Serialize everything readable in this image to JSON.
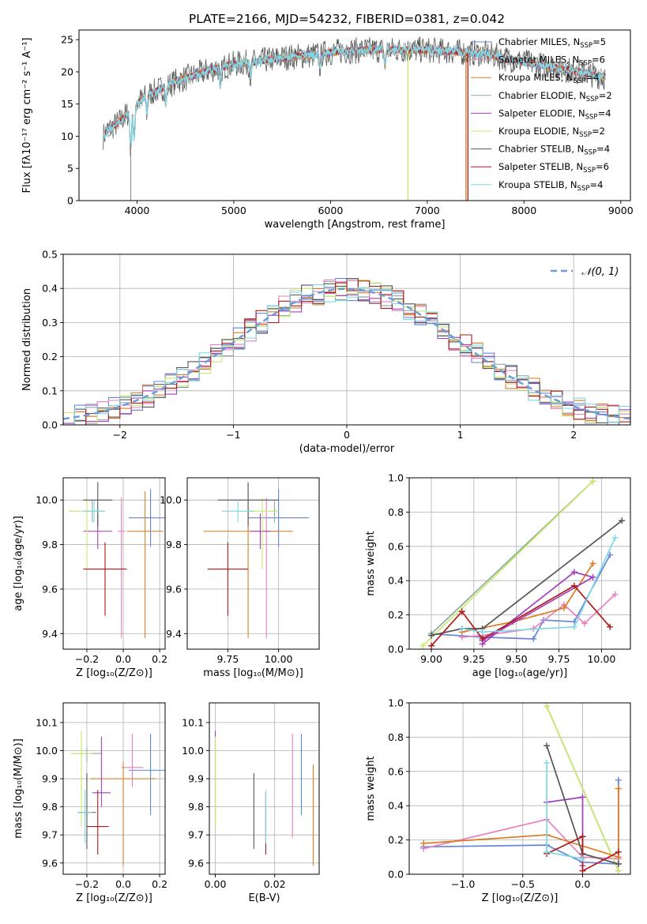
{
  "title": "PLATE=2166, MJD=54232, FIBERID=0381, z=0.042",
  "colors": {
    "chabrier_miles": "#6585d6",
    "salpeter_miles": "#e87fbf",
    "kroupa_miles": "#dd7b22",
    "chabrier_elodie": "#8fa8a4",
    "salpeter_elodie": "#a33fbd",
    "kroupa_elodie": "#c9e86b",
    "chabrier_stelib": "#555555",
    "salpeter_stelib": "#b01a1a",
    "kroupa_stelib": "#7fd8e6",
    "normal_curve": "#6b9ad8"
  },
  "chart_data": [
    {
      "id": "spectrum",
      "type": "line",
      "xlabel": "wavelength [Angstrom, rest frame]",
      "ylabel": "Flux [fλ10⁻¹⁷ erg cm⁻² s⁻¹ A⁻¹]",
      "xlim": [
        3400,
        9100
      ],
      "ylim": [
        0,
        26.5
      ],
      "xticks": [
        4000,
        5000,
        6000,
        7000,
        8000,
        9000
      ],
      "yticks": [
        0,
        5,
        10,
        15,
        20,
        25
      ],
      "grid": false,
      "legend": "top-right",
      "legend_entries": [
        {
          "label": "Chabrier MILES, N",
          "sub": "SSP",
          "suffix": "=5",
          "color_key": "chabrier_miles"
        },
        {
          "label": "Salpeter MILES, N",
          "sub": "SSP",
          "suffix": "=6",
          "color_key": "salpeter_miles"
        },
        {
          "label": "Kroupa MILES, N",
          "sub": "SSP",
          "suffix": "=4",
          "color_key": "kroupa_miles"
        },
        {
          "label": "Chabrier ELODIE, N",
          "sub": "SSP",
          "suffix": "=2",
          "color_key": "chabrier_elodie"
        },
        {
          "label": "Salpeter ELODIE, N",
          "sub": "SSP",
          "suffix": "=4",
          "color_key": "salpeter_elodie"
        },
        {
          "label": "Kroupa ELODIE, N",
          "sub": "SSP",
          "suffix": "=2",
          "color_key": "kroupa_elodie"
        },
        {
          "label": "Chabrier STELIB, N",
          "sub": "SSP",
          "suffix": "=4",
          "color_key": "chabrier_stelib"
        },
        {
          "label": "Salpeter STELIB, N",
          "sub": "SSP",
          "suffix": "=6",
          "color_key": "salpeter_stelib"
        },
        {
          "label": "Kroupa STELIB, N",
          "sub": "SSP",
          "suffix": "=4",
          "color_key": "kroupa_stelib"
        }
      ],
      "continuum": {
        "x": [
          3650,
          3700,
          3800,
          3900,
          4000,
          4100,
          4200,
          4300,
          4400,
          4600,
          4800,
          5000,
          5200,
          5500,
          5800,
          6100,
          6400,
          6700,
          7000,
          7300,
          7600,
          7900,
          8200,
          8500,
          8840
        ],
        "y": [
          10,
          11,
          12,
          13.5,
          15,
          16.5,
          17,
          17.8,
          18.5,
          19.5,
          20.5,
          21.2,
          21.5,
          22.2,
          22.6,
          23.2,
          23.4,
          23.4,
          23.4,
          23.1,
          22.8,
          21.8,
          21,
          20.2,
          19.2
        ]
      },
      "features": [
        {
          "name": "Kroupa ELODIE edge",
          "color_key": "kroupa_elodie",
          "x_start": 3650,
          "x_end": 6800
        },
        {
          "name": "Salpeter STELIB edge",
          "color_key": "salpeter_stelib",
          "x_start": 3650,
          "x_end": 7420
        },
        {
          "name": "Kroupa MILES edge",
          "color_key": "kroupa_miles",
          "x_start": 3650,
          "x_end": 7400
        }
      ]
    },
    {
      "id": "residuals",
      "type": "line",
      "xlabel": "(data-model)/error",
      "ylabel": "Normed distribution",
      "xlim": [
        -2.5,
        2.5
      ],
      "ylim": [
        0,
        0.5
      ],
      "xticks": [
        -2,
        -1,
        0,
        1,
        2
      ],
      "xticklabels": [
        "−2",
        "−1",
        "0",
        "1",
        "2"
      ],
      "yticks": [
        0,
        0.1,
        0.2,
        0.3,
        0.4,
        0.5
      ],
      "grid": true,
      "legend": "top-right",
      "legend_entries": [
        {
          "label": "𝒩(0, 1)",
          "style": "dashed",
          "color_key": "normal_curve"
        }
      ],
      "bin_width": 0.1,
      "model": "normal pdf mean 0 sigma 1"
    },
    {
      "id": "age_vs_Z",
      "type": "scatter",
      "xlabel": "Z [log₁₀(Z/Z⊙)]",
      "ylabel": "age  [log₁₀(age/yr)]",
      "xlim": [
        -0.33,
        0.23
      ],
      "ylim": [
        9.33,
        10.1
      ],
      "xticks": [
        -0.2,
        0.0,
        0.2
      ],
      "xticklabels": [
        "−0.2",
        "0.0",
        "0.2"
      ],
      "yticks": [
        9.4,
        9.6,
        9.8,
        10.0
      ],
      "grid": true,
      "points": [
        {
          "color_key": "chabrier_miles",
          "x": 0.15,
          "xerr": 0.12,
          "y": 9.92,
          "yerr": [
            0.13,
            0.13
          ]
        },
        {
          "color_key": "salpeter_miles",
          "x": -0.01,
          "xerr": 0.02,
          "y": 9.86,
          "yerr": [
            0.48,
            0.15
          ]
        },
        {
          "color_key": "kroupa_miles",
          "x": 0.12,
          "xerr": 0.1,
          "y": 9.86,
          "yerr": [
            0.48,
            0.18
          ]
        },
        {
          "color_key": "chabrier_elodie",
          "x": -0.17,
          "xerr": 0.05,
          "y": 9.95,
          "yerr": [
            0.05,
            0.05
          ]
        },
        {
          "color_key": "salpeter_elodie",
          "x": -0.14,
          "xerr": 0.08,
          "y": 9.86,
          "yerr": [
            0.08,
            0.08
          ]
        },
        {
          "color_key": "kroupa_elodie",
          "x": -0.2,
          "xerr": 0.1,
          "y": 9.95,
          "yerr": [
            0.26,
            0.06
          ]
        },
        {
          "color_key": "chabrier_stelib",
          "x": -0.14,
          "xerr": 0.08,
          "y": 10.0,
          "yerr": [
            0.12,
            0.08
          ]
        },
        {
          "color_key": "salpeter_stelib",
          "x": -0.1,
          "xerr": 0.12,
          "y": 9.69,
          "yerr": [
            0.21,
            0.12
          ]
        },
        {
          "color_key": "kroupa_stelib",
          "x": -0.16,
          "xerr": 0.06,
          "y": 9.95,
          "yerr": [
            0.05,
            0.05
          ]
        }
      ]
    },
    {
      "id": "age_vs_mass",
      "type": "scatter",
      "xlabel": "mass [log₁₀(M/M⊙)]",
      "ylabel": "",
      "xlim": [
        9.55,
        10.2
      ],
      "ylim": [
        9.33,
        10.1
      ],
      "xticks": [
        9.75,
        10.0
      ],
      "xticklabels": [
        "9.75",
        "10.00"
      ],
      "yticks": [
        9.4,
        9.6,
        9.8,
        10.0
      ],
      "grid": true,
      "points": [
        {
          "color_key": "chabrier_miles",
          "x": 10.0,
          "xerr": 0.15,
          "y": 9.92,
          "yerr": [
            0.13,
            0.13
          ]
        },
        {
          "color_key": "salpeter_miles",
          "x": 9.94,
          "xerr": 0.06,
          "y": 9.86,
          "yerr": [
            0.48,
            0.15
          ]
        },
        {
          "color_key": "kroupa_miles",
          "x": 9.85,
          "xerr": 0.22,
          "y": 9.86,
          "yerr": [
            0.48,
            0.18
          ]
        },
        {
          "color_key": "chabrier_elodie",
          "x": 9.98,
          "xerr": 0.01,
          "y": 9.95,
          "yerr": [
            0.05,
            0.05
          ]
        },
        {
          "color_key": "salpeter_elodie",
          "x": 9.91,
          "xerr": 0.05,
          "y": 9.86,
          "yerr": [
            0.08,
            0.08
          ]
        },
        {
          "color_key": "kroupa_elodie",
          "x": 9.92,
          "xerr": 0.08,
          "y": 9.95,
          "yerr": [
            0.26,
            0.06
          ]
        },
        {
          "color_key": "chabrier_stelib",
          "x": 9.85,
          "xerr": 0.15,
          "y": 10.0,
          "yerr": [
            0.12,
            0.08
          ]
        },
        {
          "color_key": "salpeter_stelib",
          "x": 9.75,
          "xerr": 0.1,
          "y": 9.69,
          "yerr": [
            0.21,
            0.12
          ]
        },
        {
          "color_key": "kroupa_stelib",
          "x": 9.8,
          "xerr": 0.08,
          "y": 9.95,
          "yerr": [
            0.05,
            0.05
          ]
        }
      ]
    },
    {
      "id": "mass_weight_vs_age",
      "type": "line",
      "xlabel": "age  [log₁₀(age/yr)]",
      "ylabel": "mass weight",
      "xlim": [
        8.87,
        10.17
      ],
      "ylim": [
        0,
        1
      ],
      "xticks": [
        9.0,
        9.25,
        9.5,
        9.75,
        10.0
      ],
      "xticklabels": [
        "9.00",
        "9.25",
        "9.50",
        "9.75",
        "10.00"
      ],
      "yticks": [
        0,
        0.2,
        0.4,
        0.6,
        0.8,
        1.0
      ],
      "grid": true,
      "series": [
        {
          "color_key": "chabrier_miles",
          "x": [
            9.0,
            9.3,
            9.6,
            9.66,
            9.84,
            10.05
          ],
          "y": [
            0.09,
            0.07,
            0.06,
            0.17,
            0.16,
            0.55
          ]
        },
        {
          "color_key": "salpeter_miles",
          "x": [
            9.18,
            9.3,
            9.6,
            9.78,
            9.9,
            10.08
          ],
          "y": [
            0.07,
            0.08,
            0.12,
            0.26,
            0.15,
            0.32
          ]
        },
        {
          "color_key": "kroupa_miles",
          "x": [
            9.18,
            9.48,
            9.78,
            9.95
          ],
          "y": [
            0.1,
            0.16,
            0.24,
            0.5
          ]
        },
        {
          "color_key": "chabrier_elodie",
          "x": [
            9.0,
            9.95
          ],
          "y": [
            0.09,
            0.98
          ]
        },
        {
          "color_key": "salpeter_elodie",
          "x": [
            9.3,
            9.84,
            9.95,
            9.3
          ],
          "y": [
            0.03,
            0.45,
            0.42,
            0.05
          ]
        },
        {
          "color_key": "kroupa_elodie",
          "x": [
            8.95,
            9.95
          ],
          "y": [
            0.02,
            0.98
          ]
        },
        {
          "color_key": "chabrier_stelib",
          "x": [
            9.0,
            9.18,
            9.3,
            10.12
          ],
          "y": [
            0.08,
            0.12,
            0.12,
            0.75
          ]
        },
        {
          "color_key": "salpeter_stelib",
          "x": [
            9.0,
            9.18,
            9.3,
            9.84,
            10.05
          ],
          "y": [
            0.02,
            0.22,
            0.06,
            0.37,
            0.13
          ]
        },
        {
          "color_key": "kroupa_stelib",
          "x": [
            9.18,
            9.3,
            9.84,
            10.08
          ],
          "y": [
            0.12,
            0.1,
            0.13,
            0.65
          ]
        }
      ]
    },
    {
      "id": "mass_vs_Z",
      "type": "scatter",
      "xlabel": "Z [log₁₀(Z/Z⊙)]",
      "ylabel": "mass [log₁₀(M/M⊙)]",
      "xlim": [
        -0.33,
        0.23
      ],
      "ylim": [
        9.56,
        10.17
      ],
      "xticks": [
        -0.2,
        0.0,
        0.2
      ],
      "xticklabels": [
        "−0.2",
        "0.0",
        "0.2"
      ],
      "yticks": [
        9.6,
        9.7,
        9.8,
        9.9,
        10.0,
        10.1
      ],
      "grid": true,
      "points": [
        {
          "color_key": "chabrier_miles",
          "x": 0.15,
          "xerr": 0.12,
          "y": 9.93,
          "yerr": [
            0.16,
            0.13
          ]
        },
        {
          "color_key": "salpeter_miles",
          "x": 0.05,
          "xerr": 0.06,
          "y": 9.94,
          "yerr": [
            0.07,
            0.12
          ]
        },
        {
          "color_key": "kroupa_miles",
          "x": 0.0,
          "xerr": 0.18,
          "y": 9.9,
          "yerr": [
            0.31,
            0.06
          ]
        },
        {
          "color_key": "chabrier_elodie",
          "x": -0.2,
          "xerr": 0.08,
          "y": 9.99,
          "yerr": [
            0.03,
            0.02
          ]
        },
        {
          "color_key": "salpeter_elodie",
          "x": -0.12,
          "xerr": 0.05,
          "y": 9.85,
          "yerr": [
            0.05,
            0.2
          ]
        },
        {
          "color_key": "kroupa_elodie",
          "x": -0.23,
          "xerr": 0.06,
          "y": 9.99,
          "yerr": [
            0.26,
            0.08
          ]
        },
        {
          "color_key": "chabrier_stelib",
          "x": -0.2,
          "xerr": 0.05,
          "y": 9.78,
          "yerr": [
            0.13,
            0.14
          ]
        },
        {
          "color_key": "salpeter_stelib",
          "x": -0.14,
          "xerr": 0.06,
          "y": 9.73,
          "yerr": [
            0.1,
            0.13
          ]
        },
        {
          "color_key": "kroupa_stelib",
          "x": -0.21,
          "xerr": 0.04,
          "y": 9.78,
          "yerr": [
            0.11,
            0.08
          ]
        }
      ]
    },
    {
      "id": "mass_vs_ebv",
      "type": "scatter",
      "xlabel": "E(B-V)",
      "ylabel": "",
      "xlim": [
        -0.002,
        0.035
      ],
      "ylim": [
        9.56,
        10.17
      ],
      "xticks": [
        0.0,
        0.02
      ],
      "xticklabels": [
        "0.00",
        "0.02"
      ],
      "yticks": [
        9.6,
        9.7,
        9.8,
        9.9,
        10.0,
        10.1
      ],
      "grid": true,
      "points": [
        {
          "color_key": "chabrier_miles",
          "x": 0.029,
          "y": 9.93,
          "yerr": [
            0.16,
            0.13
          ]
        },
        {
          "color_key": "salpeter_miles",
          "x": 0.026,
          "y": 9.94,
          "yerr": [
            0.25,
            0.12
          ]
        },
        {
          "color_key": "kroupa_miles",
          "x": 0.033,
          "y": 9.8,
          "yerr": [
            0.21,
            0.15
          ]
        },
        {
          "color_key": "chabrier_elodie",
          "x": 0.0,
          "y": 9.99,
          "yerr": [
            0.26,
            0.08
          ]
        },
        {
          "color_key": "salpeter_elodie",
          "x": 0.0,
          "y": 9.99,
          "yerr": [
            0.26,
            0.08
          ]
        },
        {
          "color_key": "kroupa_elodie",
          "x": 0.0,
          "y": 9.99,
          "yerr": [
            0.26,
            0.06
          ]
        },
        {
          "color_key": "chabrier_stelib",
          "x": 0.013,
          "y": 9.78,
          "yerr": [
            0.13,
            0.14
          ]
        },
        {
          "color_key": "salpeter_stelib",
          "x": 0.017,
          "y": 9.73,
          "yerr": [
            0.1,
            0.12
          ]
        },
        {
          "color_key": "kroupa_stelib",
          "x": 0.017,
          "y": 9.78,
          "yerr": [
            0.11,
            0.08
          ]
        }
      ]
    },
    {
      "id": "mass_weight_vs_Z",
      "type": "line",
      "xlabel": "Z [log₁₀(Z/Z⊙)]",
      "ylabel": "mass weight",
      "xlim": [
        -1.45,
        0.4
      ],
      "ylim": [
        0,
        1
      ],
      "xticks": [
        -1.0,
        -0.5,
        0.0
      ],
      "xticklabels": [
        "−1.0",
        "−0.5",
        "0.0"
      ],
      "yticks": [
        0,
        0.2,
        0.4,
        0.6,
        0.8,
        1.0
      ],
      "grid": true,
      "series": [
        {
          "color_key": "chabrier_miles",
          "x": [
            -1.33,
            -0.3,
            0.0,
            0.3,
            0.3
          ],
          "y": [
            0.16,
            0.17,
            0.07,
            0.06,
            0.55
          ]
        },
        {
          "color_key": "salpeter_miles",
          "x": [
            -1.33,
            -0.3,
            0.0,
            0.3
          ],
          "y": [
            0.15,
            0.32,
            0.1,
            0.09
          ]
        },
        {
          "color_key": "kroupa_miles",
          "x": [
            -1.33,
            -0.3,
            0.3,
            0.3
          ],
          "y": [
            0.18,
            0.23,
            0.1,
            0.5
          ]
        },
        {
          "color_key": "chabrier_elodie",
          "x": [
            -0.3,
            0.3
          ],
          "y": [
            0.98,
            0.02
          ]
        },
        {
          "color_key": "salpeter_elodie",
          "x": [
            -0.3,
            0.0,
            0.0
          ],
          "y": [
            0.42,
            0.45,
            0.05
          ]
        },
        {
          "color_key": "kroupa_elodie",
          "x": [
            -0.3,
            0.3
          ],
          "y": [
            0.98,
            0.02
          ]
        },
        {
          "color_key": "chabrier_stelib",
          "x": [
            -0.3,
            0.0,
            0.3
          ],
          "y": [
            0.75,
            0.12,
            0.06
          ]
        },
        {
          "color_key": "salpeter_stelib",
          "x": [
            -0.3,
            0.0,
            0.0,
            0.3
          ],
          "y": [
            0.12,
            0.22,
            0.02,
            0.13
          ]
        },
        {
          "color_key": "kroupa_stelib",
          "x": [
            -0.3,
            -0.3,
            0.0
          ],
          "y": [
            0.65,
            0.13,
            0.09
          ]
        }
      ]
    }
  ]
}
